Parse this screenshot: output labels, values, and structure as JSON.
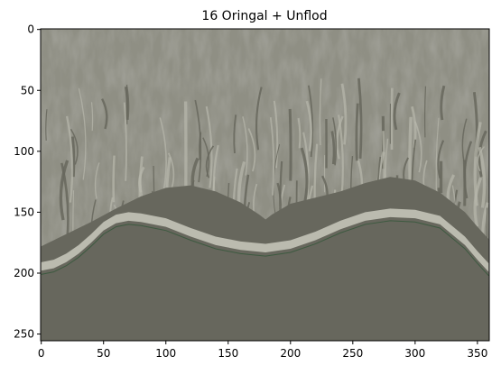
{
  "chart_data": {
    "type": "heatmap",
    "title": "16  Oringal + Unflod",
    "xlabel": "",
    "ylabel": "",
    "xlim": [
      0,
      359
    ],
    "ylim": [
      255,
      0
    ],
    "xticks": [
      0,
      50,
      100,
      150,
      200,
      250,
      300,
      350
    ],
    "yticks": [
      0,
      50,
      100,
      150,
      200,
      250
    ],
    "xtick_labels": [
      "0",
      "50",
      "100",
      "150",
      "200",
      "250",
      "300",
      "350"
    ],
    "ytick_labels": [
      "0",
      "50",
      "100",
      "150",
      "200",
      "250"
    ],
    "grid": false,
    "image_width": 360,
    "image_height": 256,
    "colors": {
      "background_texture": "#8f8f84",
      "dark_region": "#67675d",
      "light_band": "#c4c4b8",
      "streak": "#b8b8ac",
      "boundary_edge": "#3d5a40"
    },
    "regions": {
      "upper_boundary": [
        [
          0,
          178
        ],
        [
          20,
          168
        ],
        [
          40,
          158
        ],
        [
          60,
          147
        ],
        [
          80,
          137
        ],
        [
          100,
          130
        ],
        [
          120,
          128
        ],
        [
          140,
          133
        ],
        [
          160,
          142
        ],
        [
          175,
          152
        ],
        [
          180,
          156
        ],
        [
          185,
          152
        ],
        [
          200,
          143
        ],
        [
          220,
          138
        ],
        [
          240,
          133
        ],
        [
          260,
          126
        ],
        [
          280,
          121
        ],
        [
          300,
          124
        ],
        [
          320,
          134
        ],
        [
          340,
          150
        ],
        [
          350,
          162
        ],
        [
          359,
          172
        ]
      ],
      "lower_boundary": [
        [
          0,
          201
        ],
        [
          10,
          199
        ],
        [
          20,
          194
        ],
        [
          30,
          187
        ],
        [
          40,
          178
        ],
        [
          50,
          168
        ],
        [
          60,
          162
        ],
        [
          70,
          160
        ],
        [
          80,
          161
        ],
        [
          100,
          165
        ],
        [
          120,
          173
        ],
        [
          140,
          180
        ],
        [
          160,
          184
        ],
        [
          180,
          186
        ],
        [
          200,
          183
        ],
        [
          220,
          176
        ],
        [
          240,
          167
        ],
        [
          260,
          160
        ],
        [
          280,
          157
        ],
        [
          300,
          158
        ],
        [
          320,
          163
        ],
        [
          340,
          180
        ],
        [
          350,
          192
        ],
        [
          359,
          202
        ]
      ]
    }
  }
}
